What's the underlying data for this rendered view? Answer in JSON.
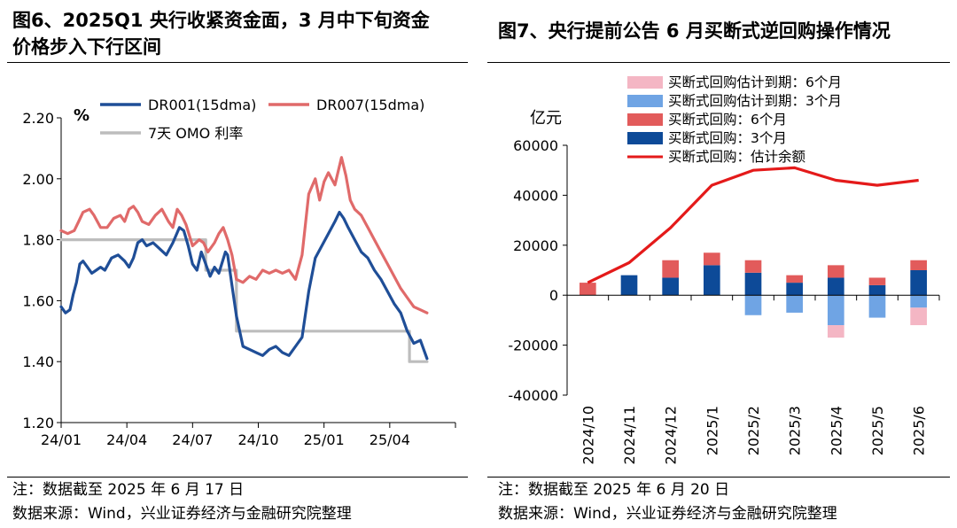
{
  "left": {
    "title_line1": "图6、2025Q1 央行收紧资金面，3 月中下旬资金",
    "title_line2": "价格步入下行区间",
    "note": "注：数据截至 2025 年 6 月 17 日",
    "source": "数据来源：Wind，兴业证券经济与金融研究院整理"
  },
  "right": {
    "title": "图7、央行提前公告 6 月买断式逆回购操作情况",
    "note": "注：数据截至 2025 年 6 月 20 日",
    "source": "数据来源：Wind，兴业证券经济与金融研究院整理"
  },
  "chart_data": [
    {
      "type": "line",
      "ylabel": "%",
      "ylim": [
        1.2,
        2.2
      ],
      "yticks": [
        "1.20",
        "1.40",
        "1.60",
        "1.80",
        "2.00",
        "2.20"
      ],
      "xticks": [
        "24/01",
        "24/04",
        "24/07",
        "24/10",
        "25/01",
        "25/04"
      ],
      "x_domain": [
        0,
        18
      ],
      "legend_placement": "top",
      "grid": false,
      "series": [
        {
          "name": "DR001(15dma)",
          "color": "#1f4e97",
          "points": [
            [
              0.0,
              1.58
            ],
            [
              0.2,
              1.56
            ],
            [
              0.4,
              1.57
            ],
            [
              0.55,
              1.62
            ],
            [
              0.7,
              1.66
            ],
            [
              0.85,
              1.72
            ],
            [
              1.0,
              1.73
            ],
            [
              1.2,
              1.71
            ],
            [
              1.4,
              1.69
            ],
            [
              1.6,
              1.7
            ],
            [
              1.8,
              1.71
            ],
            [
              2.0,
              1.7
            ],
            [
              2.3,
              1.74
            ],
            [
              2.6,
              1.75
            ],
            [
              2.9,
              1.73
            ],
            [
              3.1,
              1.71
            ],
            [
              3.3,
              1.74
            ],
            [
              3.5,
              1.79
            ],
            [
              3.7,
              1.8
            ],
            [
              3.9,
              1.78
            ],
            [
              4.2,
              1.79
            ],
            [
              4.5,
              1.77
            ],
            [
              4.8,
              1.75
            ],
            [
              5.1,
              1.79
            ],
            [
              5.4,
              1.84
            ],
            [
              5.6,
              1.83
            ],
            [
              5.8,
              1.78
            ],
            [
              6.0,
              1.72
            ],
            [
              6.2,
              1.7
            ],
            [
              6.4,
              1.76
            ],
            [
              6.6,
              1.72
            ],
            [
              6.8,
              1.68
            ],
            [
              7.0,
              1.71
            ],
            [
              7.2,
              1.69
            ],
            [
              7.5,
              1.76
            ],
            [
              7.6,
              1.75
            ],
            [
              7.8,
              1.65
            ],
            [
              8.0,
              1.55
            ],
            [
              8.3,
              1.45
            ],
            [
              8.6,
              1.44
            ],
            [
              8.9,
              1.43
            ],
            [
              9.2,
              1.42
            ],
            [
              9.5,
              1.44
            ],
            [
              9.8,
              1.45
            ],
            [
              10.1,
              1.43
            ],
            [
              10.4,
              1.42
            ],
            [
              10.7,
              1.45
            ],
            [
              11.0,
              1.48
            ],
            [
              11.3,
              1.63
            ],
            [
              11.6,
              1.74
            ],
            [
              11.9,
              1.78
            ],
            [
              12.2,
              1.82
            ],
            [
              12.5,
              1.86
            ],
            [
              12.7,
              1.89
            ],
            [
              12.9,
              1.87
            ],
            [
              13.1,
              1.84
            ],
            [
              13.4,
              1.8
            ],
            [
              13.7,
              1.76
            ],
            [
              14.0,
              1.74
            ],
            [
              14.3,
              1.7
            ],
            [
              14.6,
              1.67
            ],
            [
              14.9,
              1.63
            ],
            [
              15.2,
              1.59
            ],
            [
              15.5,
              1.56
            ],
            [
              15.8,
              1.5
            ],
            [
              16.1,
              1.46
            ],
            [
              16.4,
              1.47
            ],
            [
              16.7,
              1.41
            ]
          ]
        },
        {
          "name": "DR007(15dma)",
          "color": "#e06a6a",
          "points": [
            [
              0.0,
              1.83
            ],
            [
              0.3,
              1.82
            ],
            [
              0.6,
              1.83
            ],
            [
              0.8,
              1.86
            ],
            [
              1.0,
              1.89
            ],
            [
              1.3,
              1.9
            ],
            [
              1.5,
              1.88
            ],
            [
              1.8,
              1.84
            ],
            [
              2.1,
              1.84
            ],
            [
              2.4,
              1.87
            ],
            [
              2.7,
              1.88
            ],
            [
              2.9,
              1.86
            ],
            [
              3.1,
              1.9
            ],
            [
              3.3,
              1.91
            ],
            [
              3.5,
              1.89
            ],
            [
              3.7,
              1.86
            ],
            [
              4.0,
              1.85
            ],
            [
              4.3,
              1.88
            ],
            [
              4.6,
              1.9
            ],
            [
              4.9,
              1.86
            ],
            [
              5.1,
              1.84
            ],
            [
              5.3,
              1.9
            ],
            [
              5.5,
              1.88
            ],
            [
              5.7,
              1.85
            ],
            [
              6.0,
              1.78
            ],
            [
              6.3,
              1.8
            ],
            [
              6.5,
              1.79
            ],
            [
              6.7,
              1.76
            ],
            [
              7.0,
              1.79
            ],
            [
              7.2,
              1.82
            ],
            [
              7.4,
              1.84
            ],
            [
              7.6,
              1.8
            ],
            [
              7.8,
              1.75
            ],
            [
              8.0,
              1.67
            ],
            [
              8.3,
              1.66
            ],
            [
              8.6,
              1.68
            ],
            [
              8.9,
              1.67
            ],
            [
              9.2,
              1.7
            ],
            [
              9.5,
              1.69
            ],
            [
              9.8,
              1.7
            ],
            [
              10.1,
              1.69
            ],
            [
              10.4,
              1.7
            ],
            [
              10.7,
              1.67
            ],
            [
              11.0,
              1.75
            ],
            [
              11.3,
              1.95
            ],
            [
              11.6,
              2.0
            ],
            [
              11.8,
              1.93
            ],
            [
              12.0,
              1.99
            ],
            [
              12.2,
              2.02
            ],
            [
              12.5,
              1.98
            ],
            [
              12.8,
              2.07
            ],
            [
              13.0,
              2.01
            ],
            [
              13.2,
              1.93
            ],
            [
              13.4,
              1.9
            ],
            [
              13.7,
              1.88
            ],
            [
              14.0,
              1.84
            ],
            [
              14.3,
              1.8
            ],
            [
              14.6,
              1.76
            ],
            [
              14.9,
              1.72
            ],
            [
              15.2,
              1.68
            ],
            [
              15.5,
              1.64
            ],
            [
              15.8,
              1.61
            ],
            [
              16.1,
              1.58
            ],
            [
              16.4,
              1.57
            ],
            [
              16.7,
              1.56
            ]
          ]
        },
        {
          "name": "7天 OMO 利率",
          "color": "#bdbdbd",
          "points": [
            [
              0.0,
              1.8
            ],
            [
              6.6,
              1.8
            ],
            [
              6.6,
              1.7
            ],
            [
              8.0,
              1.7
            ],
            [
              8.0,
              1.5
            ],
            [
              15.9,
              1.5
            ],
            [
              15.9,
              1.4
            ],
            [
              16.7,
              1.4
            ]
          ]
        }
      ]
    },
    {
      "type": "bar",
      "ylabel": "亿元",
      "ylim": [
        -40000,
        60000
      ],
      "yticks": [
        "60000",
        "40000",
        "20000",
        "0",
        "-20000",
        "-40000"
      ],
      "categories": [
        "2024/10",
        "2024/11",
        "2024/12",
        "2025/1",
        "2025/2",
        "2025/3",
        "2025/4",
        "2025/5",
        "2025/6"
      ],
      "legend_placement": "top",
      "grid": false,
      "series": [
        {
          "name": "买断式回购估计到期：6个月",
          "color": "#f4b6c4",
          "values": [
            0,
            0,
            0,
            0,
            0,
            0,
            -5000,
            0,
            -7000
          ]
        },
        {
          "name": "买断式回购估计到期：3个月",
          "color": "#6fa4e4",
          "values": [
            0,
            0,
            0,
            0,
            -8000,
            -7000,
            -12000,
            -9000,
            -5000
          ]
        },
        {
          "name": "买断式回购：6个月",
          "color": "#e25b5b",
          "values": [
            5000,
            0,
            7000,
            5000,
            5000,
            3000,
            5000,
            3000,
            4000
          ]
        },
        {
          "name": "买断式回购：3个月",
          "color": "#0d4a98",
          "values": [
            0,
            8000,
            7000,
            12000,
            9000,
            5000,
            7000,
            4000,
            10000
          ]
        },
        {
          "name": "买断式回购：估计余额",
          "color": "#e41a1a",
          "type": "line",
          "values": [
            5000,
            13000,
            27000,
            44000,
            50000,
            51000,
            46000,
            44000,
            46000
          ]
        }
      ]
    }
  ]
}
